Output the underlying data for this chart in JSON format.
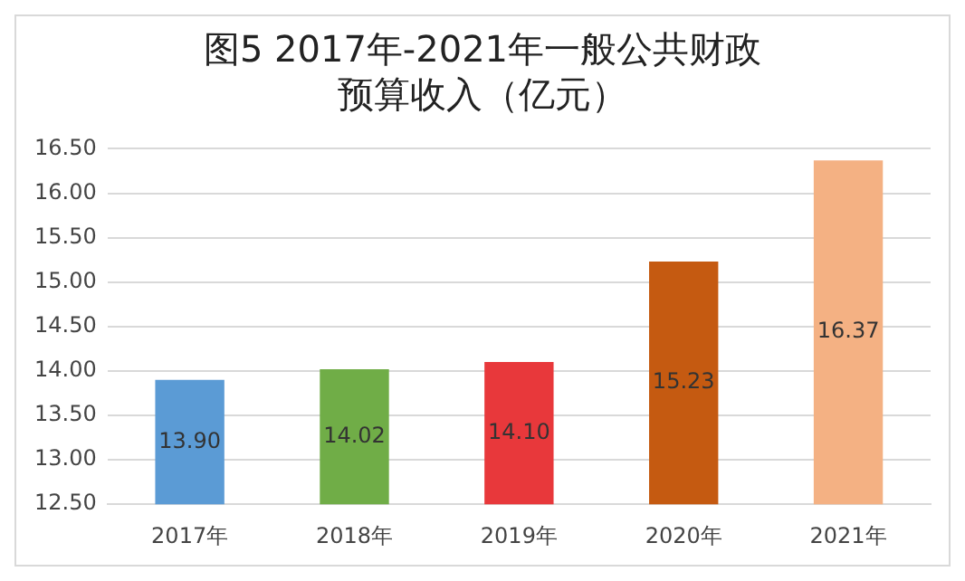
{
  "chart_data": {
    "type": "bar",
    "title": "图5  2017年-2021年一般公共财政预算收入（亿元）",
    "categories": [
      "2017年",
      "2018年",
      "2019年",
      "2020年",
      "2021年"
    ],
    "values": [
      13.9,
      14.02,
      14.1,
      15.23,
      16.37
    ],
    "value_labels": [
      "13.90",
      "14.02",
      "14.10",
      "15.23",
      "16.37"
    ],
    "colors": [
      "#5b9bd5",
      "#70ad47",
      "#e8383b",
      "#c55a11",
      "#f4b183"
    ],
    "ylim": [
      12.5,
      16.5
    ],
    "yticks": [
      {
        "value": 12.5,
        "label": "12.50"
      },
      {
        "value": 13,
        "label": "13.00"
      },
      {
        "value": 13.5,
        "label": "13.50"
      },
      {
        "value": 14,
        "label": "14.00"
      },
      {
        "value": 14.5,
        "label": "14.50"
      },
      {
        "value": 15,
        "label": "15.00"
      },
      {
        "value": 15.5,
        "label": "15.50"
      },
      {
        "value": 16,
        "label": "16.00"
      },
      {
        "value": 16.5,
        "label": "16.50"
      }
    ],
    "grid": "y",
    "legend": false
  }
}
